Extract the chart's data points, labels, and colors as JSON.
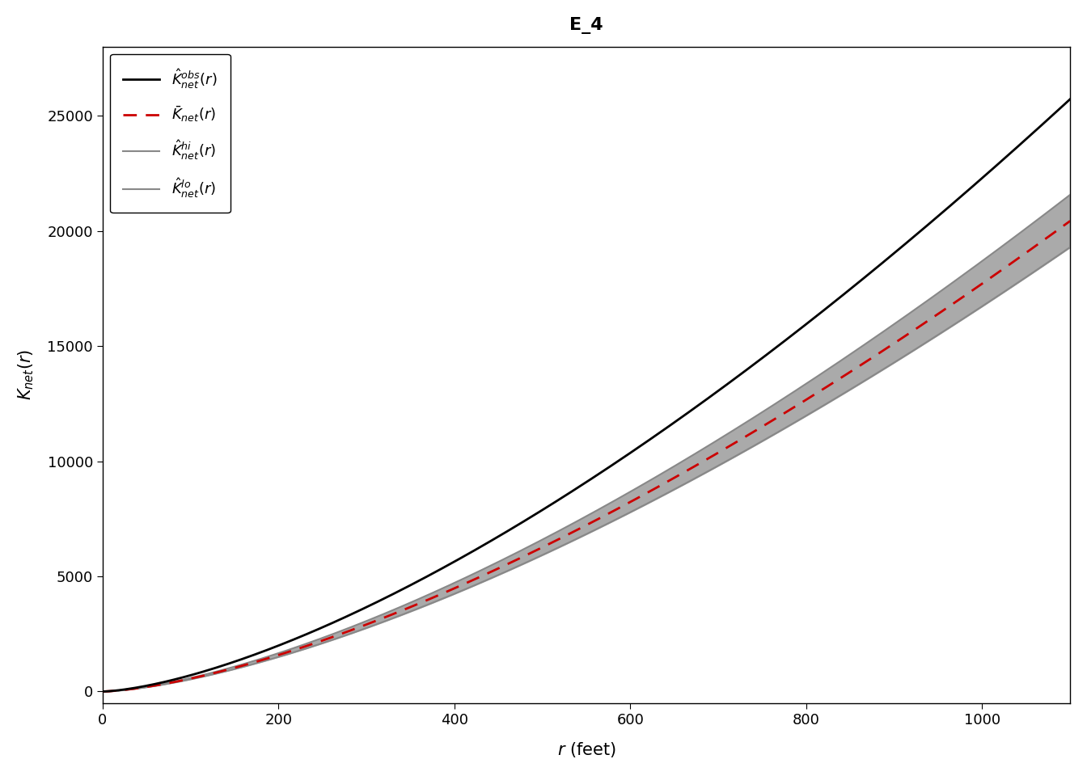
{
  "title": "E_4",
  "xlim": [
    0,
    1100
  ],
  "ylim": [
    -500,
    28000
  ],
  "xticks": [
    0,
    200,
    400,
    600,
    800,
    1000
  ],
  "yticks": [
    0,
    5000,
    10000,
    15000,
    20000,
    25000
  ],
  "background_color": "#ffffff",
  "envelope_color": "#aaaaaa",
  "envelope_alpha": 1.0,
  "obs_color": "#000000",
  "mean_color": "#cc0000",
  "hi_color": "#888888",
  "lo_color": "#888888",
  "n_points": 300,
  "obs_scale": 0.705,
  "obs_power": 1.5,
  "mean_scale": 0.56,
  "mean_power": 1.5,
  "env_scale": 0.022,
  "env_power": 1.55,
  "title_fontsize": 16,
  "axis_fontsize": 15,
  "tick_fontsize": 13,
  "legend_fontsize": 13
}
